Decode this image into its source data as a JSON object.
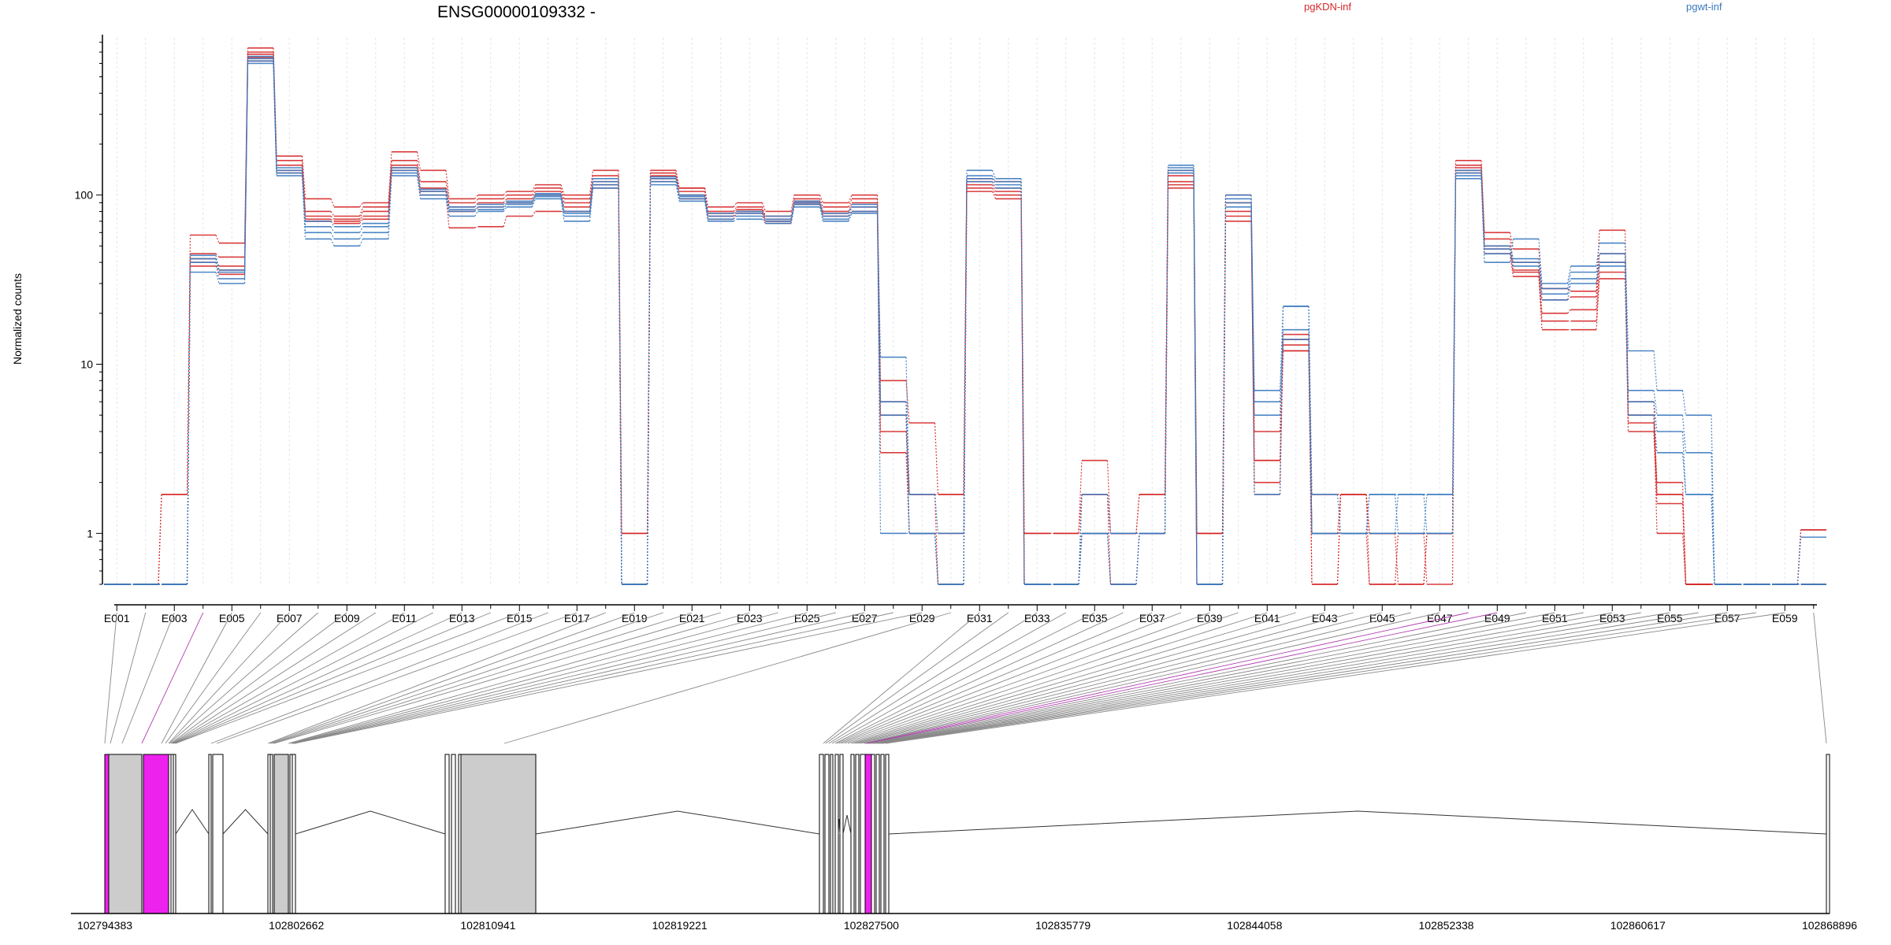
{
  "title": "ENSG00000109332 -",
  "legend": [
    {
      "label": "pgKDN-inf",
      "color": "#d62728"
    },
    {
      "label": "pgwt-inf",
      "color": "#3a7abf"
    }
  ],
  "colors": {
    "red": "#d62728",
    "blue": "#3a7abf",
    "exon_fill": "#cccccc",
    "highlight": "#ee22ee"
  },
  "chart_data": {
    "type": "line",
    "title": "ENSG00000109332 -",
    "ylabel": "Normalized counts",
    "yscale": "log",
    "ylim": [
      0.5,
      850
    ],
    "yticks": [
      {
        "value": 1,
        "label": "1"
      },
      {
        "value": 10,
        "label": "10"
      },
      {
        "value": 100,
        "label": "100"
      }
    ],
    "grid": "vertical",
    "legend_position": "top-right",
    "x_tick_labels": [
      "E001",
      "E003",
      "E005",
      "E007",
      "E009",
      "E011",
      "E013",
      "E015",
      "E017",
      "E019",
      "E021",
      "E023",
      "E025",
      "E027",
      "E029",
      "E031",
      "E033",
      "E035",
      "E037",
      "E039",
      "E041",
      "E043",
      "E045",
      "E047",
      "E049",
      "E051",
      "E053",
      "E055",
      "E057",
      "E059"
    ],
    "exons": [
      "E001",
      "E002",
      "E003",
      "E004",
      "E005",
      "E006",
      "E007",
      "E008",
      "E009",
      "E010",
      "E011",
      "E012",
      "E013",
      "E014",
      "E015",
      "E016",
      "E017",
      "E018",
      "E019",
      "E020",
      "E021",
      "E022",
      "E023",
      "E024",
      "E025",
      "E026",
      "E027",
      "E028",
      "E029",
      "E030",
      "E031",
      "E032",
      "E033",
      "E034",
      "E035",
      "E036",
      "E037",
      "E038",
      "E039",
      "E040",
      "E041",
      "E042",
      "E043",
      "E044",
      "E045",
      "E046",
      "E047",
      "E048",
      "E049",
      "E050",
      "E051",
      "E052",
      "E053",
      "E054",
      "E055",
      "E056",
      "E057",
      "E058",
      "E059",
      "E060"
    ],
    "series": [
      {
        "name": "pgKDN-inf",
        "group": "pgKDN-inf",
        "values": [
          0.5,
          0.5,
          1.7,
          58,
          52,
          700,
          170,
          95,
          85,
          90,
          180,
          140,
          95,
          100,
          105,
          115,
          100,
          140,
          1,
          140,
          110,
          85,
          90,
          80,
          100,
          90,
          100,
          8,
          4.5,
          1.7,
          125,
          120,
          1,
          1,
          2.7,
          1,
          1.7,
          140,
          1,
          100,
          1.7,
          15,
          1.7,
          1.7,
          1,
          1,
          1,
          160,
          60,
          48,
          28,
          27,
          62,
          5,
          2,
          0.5,
          0.5,
          0.5,
          0.5,
          1.05
        ]
      },
      {
        "name": "pgKDN-inf",
        "group": "pgKDN-inf",
        "values": [
          0.5,
          0.5,
          1.7,
          45,
          43,
          740,
          160,
          80,
          75,
          85,
          160,
          120,
          90,
          95,
          100,
          110,
          95,
          130,
          1,
          135,
          110,
          80,
          85,
          75,
          95,
          85,
          95,
          6,
          1.7,
          1.7,
          120,
          110,
          1,
          1,
          1.7,
          1,
          1.7,
          130,
          1,
          90,
          4,
          12,
          1,
          1.7,
          1,
          1,
          0.5,
          150,
          55,
          40,
          24,
          25,
          45,
          4.5,
          1.7,
          0.5,
          0.5,
          0.5,
          0.5,
          1.05
        ]
      },
      {
        "name": "pgKDN-inf",
        "group": "pgKDN-inf",
        "values": [
          0.5,
          0.5,
          0.5,
          42,
          38,
          680,
          150,
          75,
          72,
          80,
          150,
          110,
          85,
          90,
          95,
          105,
          90,
          120,
          0.5,
          130,
          105,
          78,
          82,
          72,
          92,
          80,
          90,
          5,
          1,
          1,
          115,
          105,
          0.5,
          0.5,
          1,
          1,
          1,
          120,
          1,
          80,
          2.7,
          14,
          1,
          1,
          0.5,
          1,
          1,
          145,
          50,
          36,
          20,
          21,
          40,
          4,
          1.5,
          0.5,
          0.5,
          0.5,
          0.5,
          0.5
        ]
      },
      {
        "name": "pgKDN-inf",
        "group": "pgKDN-inf",
        "values": [
          0.5,
          0.5,
          0.5,
          40,
          36,
          650,
          140,
          72,
          70,
          75,
          145,
          105,
          80,
          85,
          90,
          100,
          85,
          115,
          0.5,
          125,
          100,
          75,
          80,
          70,
          90,
          78,
          85,
          4,
          1.7,
          0.5,
          110,
          100,
          0.5,
          0.5,
          1.7,
          0.5,
          1,
          115,
          0.5,
          75,
          2,
          13,
          0.5,
          1.7,
          1,
          0.5,
          1,
          140,
          48,
          35,
          18,
          18,
          35,
          5,
          1,
          0.5,
          0.5,
          0.5,
          0.5,
          0.5
        ]
      },
      {
        "name": "pgKDN-inf",
        "group": "pgKDN-inf",
        "values": [
          0.5,
          0.5,
          0.5,
          38,
          34,
          620,
          135,
          70,
          68,
          72,
          140,
          100,
          64,
          65,
          75,
          80,
          80,
          110,
          0.5,
          120,
          95,
          72,
          78,
          68,
          88,
          75,
          80,
          3,
          1,
          0.5,
          105,
          95,
          0.5,
          0.5,
          1,
          0.5,
          1,
          110,
          0.5,
          70,
          2.7,
          12,
          0.5,
          1.7,
          0.5,
          0.5,
          1,
          135,
          45,
          33,
          16,
          16,
          32,
          6,
          1.7,
          0.5,
          0.5,
          0.5,
          0.5,
          0.5
        ]
      },
      {
        "name": "pgwt-inf",
        "group": "pgwt-inf",
        "values": [
          0.5,
          0.5,
          0.5,
          35,
          30,
          600,
          130,
          55,
          50,
          55,
          130,
          95,
          75,
          80,
          85,
          95,
          70,
          110,
          0.5,
          115,
          92,
          70,
          72,
          68,
          85,
          70,
          78,
          11,
          1.7,
          1,
          140,
          125,
          0.5,
          0.5,
          1.7,
          1,
          1,
          150,
          0.5,
          90,
          7,
          22,
          1.7,
          1,
          1.7,
          1.7,
          1.7,
          125,
          40,
          55,
          30,
          38,
          52,
          12,
          7,
          5,
          0.5,
          0.5,
          0.5,
          0.5
        ]
      },
      {
        "name": "pgwt-inf",
        "group": "pgwt-inf",
        "values": [
          0.5,
          0.5,
          0.5,
          40,
          32,
          620,
          135,
          60,
          55,
          60,
          135,
          100,
          80,
          82,
          88,
          98,
          75,
          115,
          0.5,
          120,
          95,
          72,
          75,
          70,
          88,
          72,
          80,
          6,
          1,
          0.5,
          130,
          120,
          0.5,
          0.5,
          1,
          1,
          1,
          145,
          0.5,
          95,
          6,
          16,
          1,
          1,
          1.7,
          1,
          1,
          130,
          45,
          40,
          28,
          35,
          45,
          7,
          5,
          3,
          0.5,
          0.5,
          0.5,
          0.5
        ]
      },
      {
        "name": "pgwt-inf",
        "group": "pgwt-inf",
        "values": [
          0.5,
          0.5,
          0.5,
          42,
          35,
          640,
          140,
          65,
          60,
          65,
          140,
          105,
          82,
          85,
          90,
          100,
          78,
          120,
          0.5,
          125,
          98,
          75,
          78,
          72,
          90,
          75,
          85,
          5,
          1,
          0.5,
          125,
          115,
          0.5,
          0.5,
          1,
          0.5,
          1,
          140,
          0.5,
          100,
          5,
          14,
          1,
          1,
          1,
          1,
          1.7,
          135,
          48,
          38,
          26,
          32,
          40,
          6,
          4,
          1.7,
          0.5,
          0.5,
          0.5,
          0.5
        ]
      },
      {
        "name": "pgwt-inf",
        "group": "pgwt-inf",
        "values": [
          0.5,
          0.5,
          0.5,
          44,
          36,
          660,
          145,
          70,
          65,
          68,
          145,
          108,
          85,
          88,
          92,
          102,
          80,
          125,
          0.5,
          128,
          100,
          78,
          80,
          75,
          92,
          78,
          88,
          1,
          1,
          0.5,
          120,
          110,
          0.5,
          0.5,
          1,
          0.5,
          1,
          135,
          0.5,
          85,
          1.7,
          22,
          1,
          1,
          1,
          1.7,
          1,
          140,
          50,
          42,
          24,
          30,
          38,
          5,
          3,
          1.7,
          0.5,
          0.5,
          0.5,
          0.95
        ]
      }
    ]
  },
  "gene_model": {
    "genomic_ticks": [
      "102794383",
      "102802662",
      "102810941",
      "102819221",
      "102827500",
      "102835779",
      "102844058",
      "102852338",
      "102860617",
      "102868896"
    ]
  }
}
